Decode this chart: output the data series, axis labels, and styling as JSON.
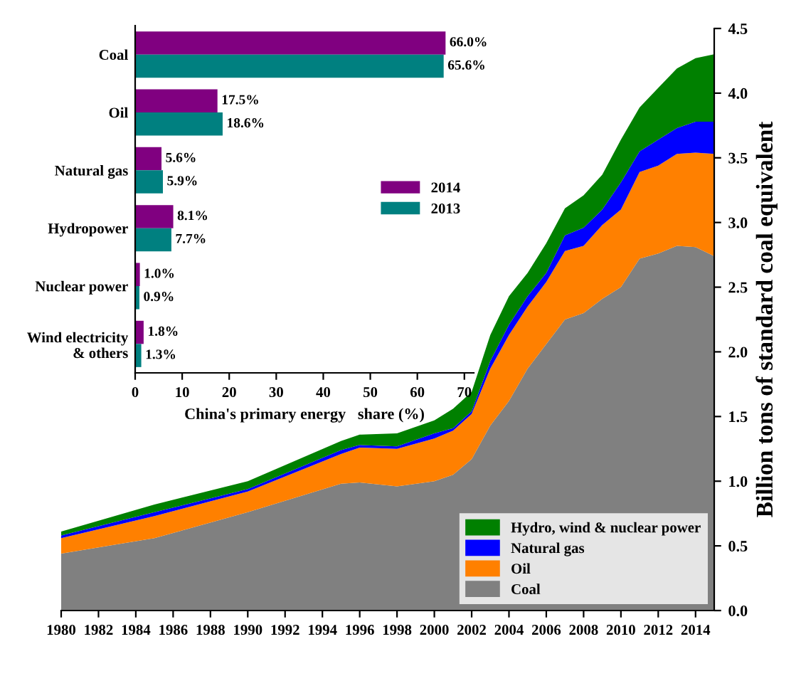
{
  "chart_data": [
    {
      "type": "area",
      "stacked": true,
      "ylabel": "Billion tons of standard coal equivalent",
      "legend": "bottom right",
      "grid": false,
      "x": [
        1980,
        1985,
        1990,
        1995,
        1996,
        1998,
        2000,
        2001,
        2002,
        2003,
        2004,
        2005,
        2006,
        2007,
        2008,
        2009,
        2010,
        2011,
        2012,
        2013,
        2014,
        2015
      ],
      "xlim": [
        1980,
        2015
      ],
      "xticks": [
        1980,
        1982,
        1984,
        1986,
        1988,
        1990,
        1992,
        1994,
        1996,
        1998,
        2000,
        2002,
        2004,
        2006,
        2008,
        2010,
        2012,
        2014
      ],
      "ylim": [
        0,
        4.5
      ],
      "yticks": [
        {
          "value": 0,
          "label": "0.0"
        },
        {
          "value": 0.5,
          "label": "0.5"
        },
        {
          "value": 1,
          "label": "1.0"
        },
        {
          "value": 1.5,
          "label": "1.5"
        },
        {
          "value": 2,
          "label": "2.0"
        },
        {
          "value": 2.5,
          "label": "2.5"
        },
        {
          "value": 3,
          "label": "3.0"
        },
        {
          "value": 3.5,
          "label": "3.5"
        },
        {
          "value": 4,
          "label": "4.0"
        },
        {
          "value": 4.5,
          "label": "4.5"
        }
      ],
      "series": [
        {
          "name": "Coal",
          "color": "#808080",
          "values": [
            0.44,
            0.56,
            0.76,
            0.98,
            0.99,
            0.96,
            1.0,
            1.05,
            1.17,
            1.43,
            1.62,
            1.87,
            2.06,
            2.25,
            2.3,
            2.41,
            2.5,
            2.72,
            2.76,
            2.82,
            2.81,
            2.74
          ]
        },
        {
          "name": "Oil",
          "color": "#ff8000",
          "values": [
            0.12,
            0.17,
            0.16,
            0.23,
            0.27,
            0.29,
            0.33,
            0.34,
            0.35,
            0.44,
            0.51,
            0.48,
            0.48,
            0.53,
            0.52,
            0.57,
            0.6,
            0.67,
            0.68,
            0.71,
            0.73,
            0.79
          ]
        },
        {
          "name": "Natural gas",
          "color": "#0000ff",
          "values": [
            0.02,
            0.03,
            0.02,
            0.03,
            0.02,
            0.02,
            0.04,
            0.02,
            0.02,
            0.06,
            0.08,
            0.08,
            0.07,
            0.12,
            0.14,
            0.12,
            0.21,
            0.16,
            0.2,
            0.2,
            0.24,
            0.25
          ]
        },
        {
          "name": "Hydro, wind & nuclear power",
          "color": "#008000",
          "values": [
            0.03,
            0.06,
            0.06,
            0.07,
            0.08,
            0.1,
            0.1,
            0.15,
            0.15,
            0.2,
            0.22,
            0.18,
            0.23,
            0.21,
            0.25,
            0.27,
            0.33,
            0.34,
            0.4,
            0.46,
            0.49,
            0.52
          ]
        }
      ]
    },
    {
      "type": "bar",
      "orientation": "horizontal",
      "xlabel": "China's primary energy   share (%)",
      "legend": "right",
      "grid": false,
      "categories": [
        "Coal",
        "Oil",
        "Natural gas",
        "Hydropower",
        "Nuclear power",
        "Wind electricity\n& others"
      ],
      "xlim": [
        0,
        72
      ],
      "xticks": [
        0,
        10,
        20,
        30,
        40,
        50,
        60,
        70
      ],
      "series": [
        {
          "name": "2014",
          "color": "#800080",
          "values": [
            66.0,
            17.5,
            5.6,
            8.1,
            1.0,
            1.8
          ],
          "value_labels": [
            "66.0%",
            "17.5%",
            "5.6%",
            "8.1%",
            "1.0%",
            "1.8%"
          ]
        },
        {
          "name": "2013",
          "color": "#008080",
          "values": [
            65.6,
            18.6,
            5.9,
            7.7,
            0.9,
            1.3
          ],
          "value_labels": [
            "65.6%",
            "18.6%",
            "5.9%",
            "7.7%",
            "0.9%",
            "1.3%"
          ]
        }
      ]
    }
  ]
}
